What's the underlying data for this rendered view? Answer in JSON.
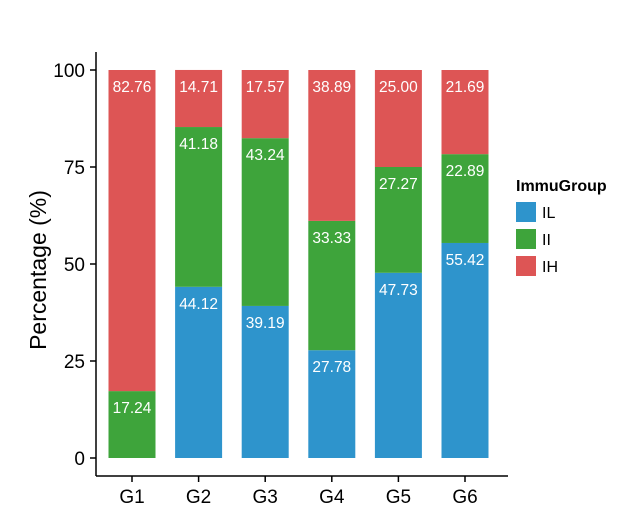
{
  "chart_data": {
    "type": "bar",
    "stacked": true,
    "categories": [
      "G1",
      "G2",
      "G3",
      "G4",
      "G5",
      "G6"
    ],
    "series": [
      {
        "name": "IL",
        "color": "#2e94cc",
        "values": [
          0,
          44.12,
          39.19,
          27.78,
          47.73,
          55.42
        ],
        "labels": [
          "",
          "44.12",
          "39.19",
          "27.78",
          "47.73",
          "55.42"
        ]
      },
      {
        "name": "II",
        "color": "#3ea43b",
        "values": [
          17.24,
          41.18,
          43.24,
          33.33,
          27.27,
          22.89
        ],
        "labels": [
          "17.24",
          "41.18",
          "43.24",
          "33.33",
          "27.27",
          "22.89"
        ]
      },
      {
        "name": "IH",
        "color": "#dd5555",
        "values": [
          82.76,
          14.71,
          17.57,
          38.89,
          25.0,
          21.69
        ],
        "labels": [
          "82.76",
          "14.71",
          "17.57",
          "38.89",
          "25.00",
          "21.69"
        ]
      }
    ],
    "ylabel": "Percentage (%)",
    "xlabel": "",
    "ylim": [
      0,
      100
    ],
    "yticks": [
      0,
      25,
      50,
      75,
      100
    ],
    "legend": {
      "title": "ImmuGroup",
      "placement": "right"
    },
    "grid": false
  }
}
